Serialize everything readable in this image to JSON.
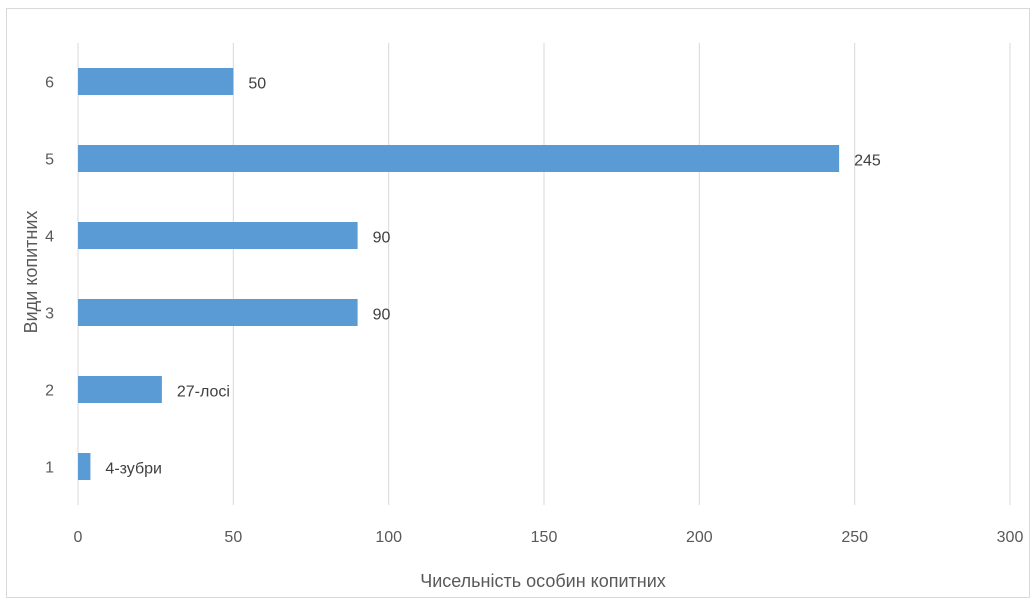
{
  "chart_data": {
    "type": "bar",
    "orientation": "horizontal",
    "categories": [
      "1",
      "2",
      "3",
      "4",
      "5",
      "6"
    ],
    "values": [
      4,
      27,
      90,
      90,
      245,
      50
    ],
    "data_labels": [
      "4-зубри",
      "27-лосі",
      "90",
      "90",
      "245",
      "50"
    ],
    "xlabel": "Чисельність особин копитних",
    "ylabel": "Види копитних",
    "xlim": [
      0,
      300
    ],
    "x_ticks": [
      "0",
      "50",
      "100",
      "150",
      "200",
      "250",
      "300"
    ],
    "grid": "vertical",
    "bar_color": "#5b9bd5",
    "gridline_color": "#d9d9d9"
  }
}
